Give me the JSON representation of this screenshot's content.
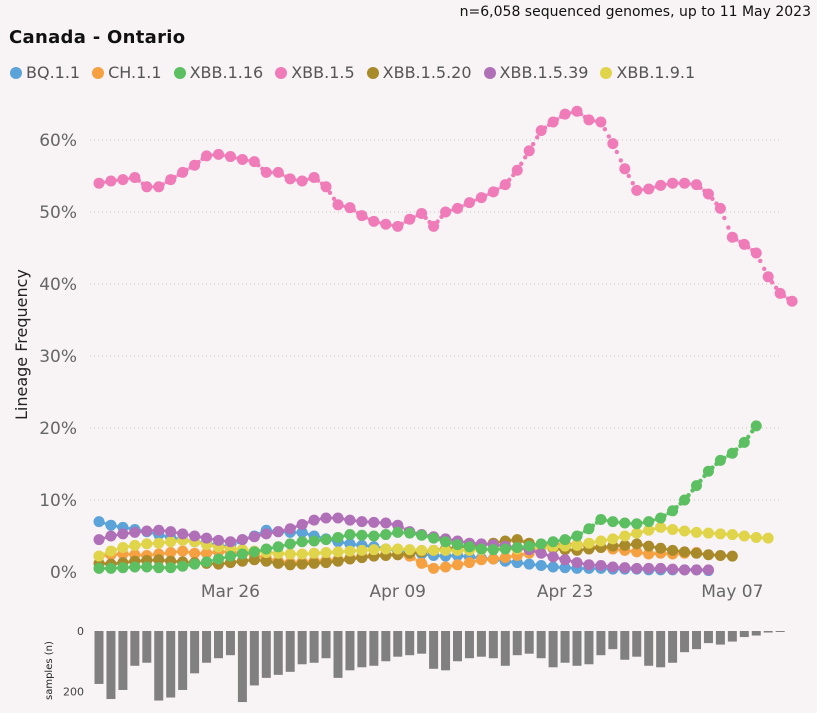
{
  "subtitle": "n=6,058 sequenced genomes, up to 11 May 2023",
  "chart_data": [
    {
      "type": "line",
      "title": "Canada - Ontario",
      "xlabel": "",
      "ylabel": "Lineage Frequency",
      "x_tick_labels": [
        "Mar 26",
        "Apr 09",
        "Apr 23",
        "May 07"
      ],
      "x_tick_index": [
        11,
        25,
        39,
        53
      ],
      "y_tick_labels": [
        "0%",
        "10%",
        "20%",
        "30%",
        "40%",
        "50%",
        "60%"
      ],
      "ylim": [
        0,
        65
      ],
      "grid": "dotted horizontal",
      "legend_position": "top",
      "x_dates_start": "Mar 15",
      "series": [
        {
          "name": "BQ.1.1",
          "color": "#5ba3d9",
          "values": [
            7,
            6.5,
            6.2,
            5.9,
            5.6,
            5.2,
            4.8,
            4.5,
            4.2,
            4,
            3.7,
            3.5,
            4.5,
            5,
            5.8,
            5.6,
            5.5,
            5.5,
            5,
            4.6,
            4.2,
            3.9,
            3.7,
            3.5,
            3.2,
            3,
            2.7,
            2.5,
            2.3,
            2.2,
            2.3,
            2.1,
            1.9,
            1.8,
            1.5,
            1.3,
            1.1,
            0.9,
            0.7,
            0.6,
            0.5,
            0.5,
            0.5,
            0.4,
            0.4,
            0.4,
            0.3,
            0.3,
            0.3,
            0.3,
            0.3,
            0.2
          ]
        },
        {
          "name": "CH.1.1",
          "color": "#f5a142",
          "values": [
            2.2,
            2.4,
            2.5,
            2.4,
            2.3,
            2.5,
            2.7,
            2.9,
            2.6,
            2.6,
            2.8,
            2.8,
            2.6,
            2.4,
            1.9,
            1.5,
            1.3,
            1.4,
            1.5,
            1.6,
            1.7,
            1.9,
            2.2,
            2.3,
            2.4,
            2.4,
            2.2,
            1.2,
            0.5,
            0.7,
            1,
            1.3,
            1.7,
            1.8,
            2,
            2.3,
            2.6,
            3.5,
            3.8,
            3.9,
            3.8,
            3.6,
            3.4,
            3.2,
            3,
            2.8,
            2.5,
            2.6,
            2.5,
            2.6,
            2.7
          ]
        },
        {
          "name": "XBB.1.16",
          "color": "#5cbf62",
          "values": [
            0.5,
            0.5,
            0.6,
            0.7,
            0.7,
            0.6,
            0.6,
            0.8,
            1.1,
            1.4,
            1.8,
            2.2,
            2.5,
            2.8,
            3.2,
            3.5,
            3.9,
            4.2,
            4.3,
            4.5,
            4.8,
            5.2,
            5.1,
            5,
            5.2,
            5.5,
            5.4,
            5.1,
            4.7,
            4.2,
            3.8,
            3.5,
            3.2,
            3.1,
            3.2,
            3.4,
            3.6,
            3.9,
            4.2,
            4.5,
            5,
            6,
            7.3,
            7,
            6.8,
            6.7,
            7,
            7.5,
            8.5,
            10,
            12,
            14,
            15.5,
            16.5,
            18,
            20.3
          ]
        },
        {
          "name": "XBB.1.5",
          "color": "#ef7cb8",
          "values": [
            54,
            54.3,
            54.5,
            54.8,
            53.5,
            53.5,
            54.5,
            55.5,
            56.5,
            57.8,
            58,
            57.7,
            57.3,
            57,
            55.5,
            55.5,
            54.6,
            54.3,
            54.8,
            53.5,
            51,
            50.6,
            49.5,
            48.7,
            48.3,
            48,
            49,
            49.8,
            48,
            50,
            50.5,
            51.3,
            52,
            52.8,
            53.8,
            55.8,
            58.5,
            61.3,
            62.5,
            63.6,
            64,
            62.8,
            62.5,
            59.5,
            56,
            53,
            53.2,
            53.7,
            54,
            54,
            53.8,
            52.5,
            50.5,
            46.5,
            45.5,
            44.3,
            41,
            38.7,
            37.6
          ]
        },
        {
          "name": "XBB.1.5.20",
          "color": "#a88a2b",
          "values": [
            1.2,
            1.1,
            1.3,
            1.5,
            1.6,
            1.7,
            1.5,
            1.4,
            1.3,
            1.2,
            1.1,
            1.3,
            1.5,
            1.7,
            1.5,
            1.2,
            1,
            1.1,
            1.2,
            1.3,
            1.5,
            1.8,
            2,
            2.2,
            2.3,
            2.4,
            2.6,
            2.8,
            3,
            3.2,
            3.4,
            3.6,
            3.8,
            4,
            4.3,
            4.5,
            4,
            3.6,
            3.3,
            3.1,
            3,
            3.2,
            3.4,
            3.6,
            3.7,
            3.9,
            3.6,
            3.3,
            3,
            2.8,
            2.6,
            2.4,
            2.3,
            2.2
          ]
        },
        {
          "name": "XBB.1.5.39",
          "color": "#b070b8",
          "values": [
            4.5,
            5,
            5.3,
            5.5,
            5.7,
            5.8,
            5.6,
            5.3,
            5,
            4.7,
            4.4,
            4.2,
            4.5,
            4.9,
            5.3,
            5.6,
            6,
            6.6,
            7.2,
            7.5,
            7.5,
            7.2,
            7,
            6.9,
            6.8,
            6.5,
            5.6,
            5.2,
            4.9,
            4.6,
            4.3,
            4,
            3.9,
            3.8,
            3.6,
            3.4,
            3.1,
            2.6,
            2.1,
            1.7,
            1.3,
            1,
            0.9,
            0.7,
            0.6,
            0.5,
            0.5,
            0.5,
            0.4,
            0.3,
            0.3,
            0.3
          ]
        },
        {
          "name": "XBB.1.9.1",
          "color": "#e0d44a",
          "values": [
            2.2,
            2.9,
            3.4,
            3.7,
            3.9,
            4,
            4.2,
            4.4,
            4.2,
            3.8,
            3.5,
            3.3,
            3.1,
            2.9,
            2.7,
            2.6,
            2.5,
            2.5,
            2.6,
            2.7,
            2.8,
            2.9,
            3,
            3.1,
            3.2,
            3.2,
            3.1,
            3,
            3,
            3,
            3,
            3,
            3.1,
            3.2,
            3.2,
            3.2,
            3.3,
            3.4,
            3.5,
            3.6,
            3.7,
            4,
            4.3,
            4.6,
            5,
            5.4,
            5.8,
            6.2,
            5.9,
            5.7,
            5.5,
            5.4,
            5.3,
            5.2,
            5,
            4.8,
            4.7
          ]
        }
      ]
    },
    {
      "type": "bar",
      "ylabel": "samples (n)",
      "y_tick_labels": [
        "0",
        "200"
      ],
      "ylim": [
        0,
        250
      ],
      "orientation": "downward",
      "values": [
        175,
        225,
        195,
        115,
        105,
        230,
        220,
        195,
        140,
        105,
        90,
        80,
        235,
        180,
        155,
        145,
        135,
        110,
        105,
        90,
        155,
        130,
        120,
        115,
        100,
        85,
        80,
        75,
        125,
        130,
        100,
        90,
        85,
        90,
        115,
        80,
        75,
        90,
        120,
        105,
        115,
        110,
        80,
        60,
        95,
        85,
        115,
        120,
        105,
        70,
        60,
        40,
        45,
        35,
        20,
        15,
        5,
        3
      ]
    }
  ]
}
